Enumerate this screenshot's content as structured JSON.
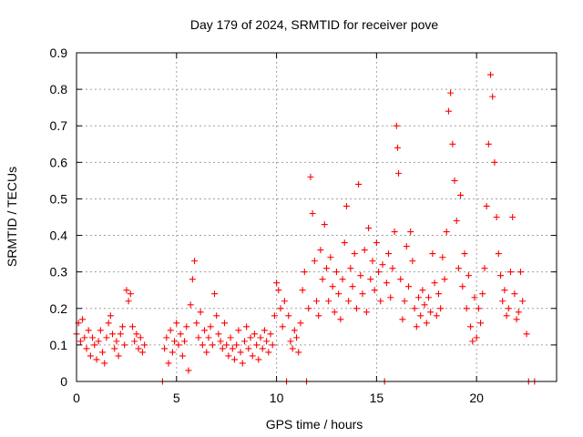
{
  "chart_data": {
    "type": "scatter",
    "title": "Day 179 of 2024, SRMTID for receiver pove",
    "xlabel": "GPS time / hours",
    "ylabel": "SRMTID / TECUs",
    "xlim": [
      0,
      24
    ],
    "ylim": [
      0,
      0.9
    ],
    "xticks": [
      "0",
      "5",
      "10",
      "15",
      "20"
    ],
    "xtick_values": [
      0,
      5,
      10,
      15,
      20
    ],
    "yticks": [
      "0",
      "0.1",
      "0.2",
      "0.3",
      "0.4",
      "0.5",
      "0.6",
      "0.7",
      "0.8",
      "0.9"
    ],
    "ytick_values": [
      0,
      0.1,
      0.2,
      0.3,
      0.4,
      0.5,
      0.6,
      0.7,
      0.8,
      0.9
    ],
    "grid": true,
    "marker": "+",
    "color": "#ff0000",
    "series": [
      {
        "name": "SRMTID",
        "points": [
          [
            0.0,
            0.13
          ],
          [
            0.1,
            0.16
          ],
          [
            0.2,
            0.11
          ],
          [
            0.3,
            0.17
          ],
          [
            0.4,
            0.12
          ],
          [
            0.5,
            0.09
          ],
          [
            0.6,
            0.14
          ],
          [
            0.7,
            0.07
          ],
          [
            0.8,
            0.12
          ],
          [
            0.9,
            0.1
          ],
          [
            1.0,
            0.06
          ],
          [
            1.1,
            0.11
          ],
          [
            1.2,
            0.14
          ],
          [
            1.3,
            0.08
          ],
          [
            1.4,
            0.05
          ],
          [
            1.5,
            0.12
          ],
          [
            1.6,
            0.16
          ],
          [
            1.7,
            0.18
          ],
          [
            1.8,
            0.13
          ],
          [
            1.9,
            0.09
          ],
          [
            2.0,
            0.11
          ],
          [
            2.1,
            0.07
          ],
          [
            2.2,
            0.13
          ],
          [
            2.3,
            0.15
          ],
          [
            2.4,
            0.1
          ],
          [
            2.5,
            0.25
          ],
          [
            2.6,
            0.22
          ],
          [
            2.7,
            0.24
          ],
          [
            2.8,
            0.15
          ],
          [
            2.9,
            0.11
          ],
          [
            3.0,
            0.13
          ],
          [
            3.1,
            0.09
          ],
          [
            3.2,
            0.12
          ],
          [
            3.3,
            0.08
          ],
          [
            3.4,
            0.1
          ],
          [
            4.3,
            0.0
          ],
          [
            4.4,
            0.09
          ],
          [
            4.5,
            0.12
          ],
          [
            4.6,
            0.05
          ],
          [
            4.7,
            0.14
          ],
          [
            4.8,
            0.08
          ],
          [
            4.9,
            0.11
          ],
          [
            5.0,
            0.16
          ],
          [
            5.1,
            0.1
          ],
          [
            5.2,
            0.13
          ],
          [
            5.3,
            0.07
          ],
          [
            5.4,
            0.11
          ],
          [
            5.5,
            0.15
          ],
          [
            5.6,
            0.03
          ],
          [
            5.7,
            0.21
          ],
          [
            5.8,
            0.28
          ],
          [
            5.9,
            0.33
          ],
          [
            6.0,
            0.16
          ],
          [
            6.1,
            0.12
          ],
          [
            6.2,
            0.19
          ],
          [
            6.3,
            0.1
          ],
          [
            6.4,
            0.14
          ],
          [
            6.5,
            0.08
          ],
          [
            6.6,
            0.12
          ],
          [
            6.7,
            0.15
          ],
          [
            6.8,
            0.1
          ],
          [
            6.9,
            0.24
          ],
          [
            7.0,
            0.18
          ],
          [
            7.1,
            0.13
          ],
          [
            7.2,
            0.11
          ],
          [
            7.3,
            0.09
          ],
          [
            7.4,
            0.16
          ],
          [
            7.5,
            0.1
          ],
          [
            7.6,
            0.07
          ],
          [
            7.7,
            0.12
          ],
          [
            7.8,
            0.09
          ],
          [
            7.9,
            0.06
          ],
          [
            8.0,
            0.1
          ],
          [
            8.1,
            0.14
          ],
          [
            8.2,
            0.08
          ],
          [
            8.3,
            0.05
          ],
          [
            8.4,
            0.11
          ],
          [
            8.5,
            0.15
          ],
          [
            8.6,
            0.09
          ],
          [
            8.7,
            0.12
          ],
          [
            8.8,
            0.07
          ],
          [
            8.9,
            0.13
          ],
          [
            9.0,
            0.1
          ],
          [
            9.1,
            0.06
          ],
          [
            9.2,
            0.12
          ],
          [
            9.3,
            0.09
          ],
          [
            9.4,
            0.14
          ],
          [
            9.5,
            0.11
          ],
          [
            9.6,
            0.08
          ],
          [
            9.7,
            0.13
          ],
          [
            9.8,
            0.1
          ],
          [
            9.9,
            0.18
          ],
          [
            10.0,
            0.27
          ],
          [
            10.1,
            0.25
          ],
          [
            10.2,
            0.2
          ],
          [
            10.3,
            0.15
          ],
          [
            10.4,
            0.22
          ],
          [
            10.5,
            0.0
          ],
          [
            10.6,
            0.18
          ],
          [
            10.7,
            0.11
          ],
          [
            10.8,
            0.09
          ],
          [
            10.9,
            0.14
          ],
          [
            11.0,
            0.12
          ],
          [
            11.1,
            0.08
          ],
          [
            11.2,
            0.16
          ],
          [
            11.3,
            0.25
          ],
          [
            11.4,
            0.3
          ],
          [
            11.5,
            0.0
          ],
          [
            11.6,
            0.2
          ],
          [
            11.7,
            0.56
          ],
          [
            11.8,
            0.46
          ],
          [
            11.9,
            0.33
          ],
          [
            12.0,
            0.22
          ],
          [
            12.1,
            0.18
          ],
          [
            12.2,
            0.36
          ],
          [
            12.3,
            0.28
          ],
          [
            12.4,
            0.43
          ],
          [
            12.5,
            0.31
          ],
          [
            12.6,
            0.22
          ],
          [
            12.7,
            0.34
          ],
          [
            12.8,
            0.26
          ],
          [
            12.9,
            0.19
          ],
          [
            13.0,
            0.3
          ],
          [
            13.1,
            0.24
          ],
          [
            13.2,
            0.17
          ],
          [
            13.3,
            0.28
          ],
          [
            13.4,
            0.38
          ],
          [
            13.5,
            0.48
          ],
          [
            13.6,
            0.22
          ],
          [
            13.7,
            0.31
          ],
          [
            13.8,
            0.26
          ],
          [
            13.9,
            0.35
          ],
          [
            14.0,
            0.2
          ],
          [
            14.1,
            0.54
          ],
          [
            14.2,
            0.29
          ],
          [
            14.3,
            0.24
          ],
          [
            14.4,
            0.36
          ],
          [
            14.5,
            0.19
          ],
          [
            14.6,
            0.42
          ],
          [
            14.7,
            0.28
          ],
          [
            14.8,
            0.33
          ],
          [
            14.9,
            0.25
          ],
          [
            15.0,
            0.38
          ],
          [
            15.1,
            0.3
          ],
          [
            15.2,
            0.22
          ],
          [
            15.3,
            0.32
          ],
          [
            15.4,
            0.0
          ],
          [
            15.5,
            0.27
          ],
          [
            15.6,
            0.35
          ],
          [
            15.7,
            0.23
          ],
          [
            15.8,
            0.31
          ],
          [
            15.9,
            0.41
          ],
          [
            16.0,
            0.7
          ],
          [
            16.05,
            0.64
          ],
          [
            16.1,
            0.57
          ],
          [
            16.2,
            0.28
          ],
          [
            16.3,
            0.17
          ],
          [
            16.4,
            0.22
          ],
          [
            16.5,
            0.37
          ],
          [
            16.6,
            0.26
          ],
          [
            16.7,
            0.41
          ],
          [
            16.8,
            0.33
          ],
          [
            16.9,
            0.2
          ],
          [
            17.0,
            0.15
          ],
          [
            17.1,
            0.23
          ],
          [
            17.2,
            0.18
          ],
          [
            17.3,
            0.25
          ],
          [
            17.4,
            0.21
          ],
          [
            17.5,
            0.16
          ],
          [
            17.6,
            0.23
          ],
          [
            17.7,
            0.19
          ],
          [
            17.8,
            0.35
          ],
          [
            17.9,
            0.27
          ],
          [
            18.0,
            0.18
          ],
          [
            18.1,
            0.24
          ],
          [
            18.2,
            0.2
          ],
          [
            18.3,
            0.34
          ],
          [
            18.4,
            0.28
          ],
          [
            18.5,
            0.41
          ],
          [
            18.6,
            0.74
          ],
          [
            18.7,
            0.79
          ],
          [
            18.8,
            0.65
          ],
          [
            18.9,
            0.55
          ],
          [
            19.0,
            0.44
          ],
          [
            19.1,
            0.31
          ],
          [
            19.2,
            0.51
          ],
          [
            19.3,
            0.26
          ],
          [
            19.4,
            0.35
          ],
          [
            19.5,
            0.2
          ],
          [
            19.6,
            0.29
          ],
          [
            19.7,
            0.15
          ],
          [
            19.8,
            0.11
          ],
          [
            19.9,
            0.23
          ],
          [
            20.0,
            0.12
          ],
          [
            20.1,
            0.2
          ],
          [
            20.2,
            0.16
          ],
          [
            20.3,
            0.24
          ],
          [
            20.4,
            0.31
          ],
          [
            20.5,
            0.48
          ],
          [
            20.6,
            0.65
          ],
          [
            20.7,
            0.84
          ],
          [
            20.8,
            0.78
          ],
          [
            20.9,
            0.6
          ],
          [
            21.0,
            0.45
          ],
          [
            21.1,
            0.35
          ],
          [
            21.2,
            0.29
          ],
          [
            21.3,
            0.22
          ],
          [
            21.4,
            0.25
          ],
          [
            21.5,
            0.18
          ],
          [
            21.6,
            0.2
          ],
          [
            21.7,
            0.3
          ],
          [
            21.8,
            0.45
          ],
          [
            21.9,
            0.24
          ],
          [
            22.0,
            0.17
          ],
          [
            22.1,
            0.19
          ],
          [
            22.2,
            0.3
          ],
          [
            22.3,
            0.22
          ],
          [
            22.5,
            0.13
          ],
          [
            22.6,
            0.0
          ],
          [
            22.9,
            0.0
          ]
        ]
      }
    ]
  }
}
